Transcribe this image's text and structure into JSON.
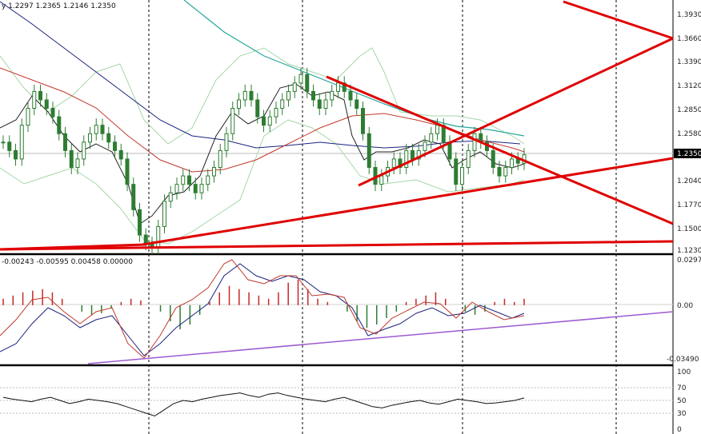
{
  "header": {
    "ohlc_text": "y  1.2297 1.2365 1.2146 1.2350",
    "macd_text": "-0.00243 -0.00595 0.00458 0.00000"
  },
  "current_price": "1.2350",
  "colors": {
    "candle": "#2e7d32",
    "trendline": "#e00000",
    "ma_fast": "#222222",
    "ma_slow_red": "#c0392b",
    "ma_navy": "#1a237e",
    "ma_teal": "#26a69a",
    "bands": "#a5d6a7",
    "macd_up": "#c62828",
    "macd_down": "#2e7d32",
    "macd_trend": "#9c5ad0",
    "grid": "#000000"
  },
  "chart_data": [
    {
      "type": "candlestick",
      "ylim": [
        1.123,
        1.405
      ],
      "y_ticks": [
        "1.3930",
        "1.3660",
        "1.3390",
        "1.3120",
        "1.2850",
        "1.2580",
        "1.2350",
        "1.2040",
        "1.1770",
        "1.1500",
        "1.1230"
      ],
      "last_close": 1.235,
      "closes": [
        1.25,
        1.24,
        1.23,
        1.27,
        1.29,
        1.31,
        1.3,
        1.29,
        1.28,
        1.26,
        1.24,
        1.22,
        1.23,
        1.25,
        1.26,
        1.27,
        1.26,
        1.25,
        1.24,
        1.23,
        1.2,
        1.17,
        1.14,
        1.13,
        1.125,
        1.15,
        1.18,
        1.19,
        1.2,
        1.21,
        1.2,
        1.19,
        1.2,
        1.21,
        1.22,
        1.24,
        1.26,
        1.29,
        1.3,
        1.31,
        1.3,
        1.28,
        1.27,
        1.28,
        1.29,
        1.3,
        1.31,
        1.32,
        1.33,
        1.31,
        1.3,
        1.29,
        1.3,
        1.31,
        1.32,
        1.31,
        1.3,
        1.29,
        1.26,
        1.22,
        1.2,
        1.21,
        1.22,
        1.23,
        1.22,
        1.24,
        1.23,
        1.24,
        1.25,
        1.26,
        1.27,
        1.25,
        1.23,
        1.2,
        1.22,
        1.24,
        1.26,
        1.25,
        1.24,
        1.22,
        1.21,
        1.22,
        1.23,
        1.225,
        1.235
      ],
      "trendlines": [
        {
          "from": [
            1.13
          ],
          "to": [
            1.228
          ]
        },
        {
          "from": [
            1.132
          ],
          "to": [
            1.133
          ]
        },
        {
          "from": [
            1.32
          ],
          "to": [
            1.155
          ]
        },
        {
          "from": [
            1.193
          ],
          "to": [
            1.366
          ]
        },
        {
          "from": [
            1.405
          ],
          "to": [
            1.366
          ]
        }
      ]
    },
    {
      "type": "macd",
      "ylim": [
        -0.0349,
        0.02977
      ],
      "y_ticks": [
        "0.02977",
        "0.00",
        "-0.03490"
      ],
      "histogram": [
        0.004,
        0.006,
        0.008,
        0.009,
        0.01,
        0.008,
        0.004,
        0.0,
        -0.004,
        -0.006,
        -0.005,
        -0.002,
        0.002,
        0.004,
        0.003,
        0.0,
        -0.004,
        -0.01,
        -0.015,
        -0.012,
        -0.006,
        0.002,
        0.008,
        0.012,
        0.01,
        0.008,
        0.006,
        0.004,
        0.008,
        0.014,
        0.016,
        0.01,
        0.004,
        0.002,
        0.0,
        -0.004,
        -0.01,
        -0.014,
        -0.012,
        -0.008,
        -0.004,
        0.002,
        0.004,
        0.006,
        0.008,
        0.004,
        0.0,
        -0.004,
        -0.006,
        -0.004,
        0.002,
        0.004,
        0.002,
        0.004
      ]
    },
    {
      "type": "line",
      "ylim": [
        0,
        100
      ],
      "y_ticks": [
        "100",
        "70",
        "50",
        "30",
        "0"
      ],
      "values": [
        55,
        52,
        50,
        48,
        52,
        55,
        50,
        45,
        48,
        52,
        50,
        48,
        45,
        40,
        35,
        30,
        25,
        35,
        45,
        50,
        48,
        52,
        55,
        58,
        60,
        62,
        58,
        55,
        60,
        62,
        58,
        55,
        52,
        50,
        48,
        52,
        55,
        50,
        45,
        40,
        38,
        42,
        45,
        48,
        50,
        46,
        44,
        48,
        52,
        50,
        48,
        45,
        46,
        48,
        50,
        54
      ]
    }
  ]
}
